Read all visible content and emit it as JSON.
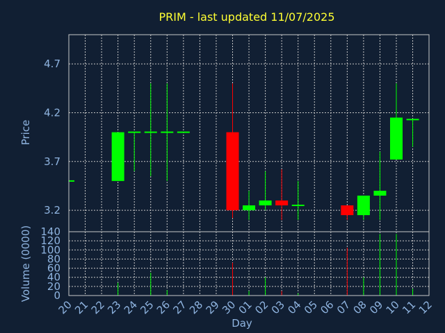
{
  "chart_data": {
    "type": "candlestick",
    "title": "PRIM - last updated 11/07/2025",
    "xlabel": "Day",
    "ylabel": "Price",
    "volume_ylabel": "Volume (0000)",
    "days": [
      "20",
      "21",
      "22",
      "23",
      "24",
      "25",
      "26",
      "27",
      "28",
      "29",
      "30",
      "01",
      "02",
      "03",
      "04",
      "05",
      "06",
      "07",
      "08",
      "09",
      "10",
      "11",
      "12"
    ],
    "price_ticks": [
      "3.2",
      "3.7",
      "4.2",
      "4.7"
    ],
    "price_ylim": [
      2.98,
      5.0
    ],
    "volume_ticks": [
      "0",
      "20",
      "40",
      "60",
      "80",
      "100",
      "120",
      "140"
    ],
    "volume_ylim": [
      0,
      140
    ],
    "grid": true,
    "candles": [
      {
        "day": "20",
        "open": 3.5,
        "high": 3.5,
        "low": 3.5,
        "close": 3.5,
        "volume": 0
      },
      {
        "day": "23",
        "open": 3.5,
        "high": 4.0,
        "low": 3.5,
        "close": 4.0,
        "volume": 28
      },
      {
        "day": "24",
        "open": 4.0,
        "high": 4.0,
        "low": 3.6,
        "close": 4.0,
        "volume": 0
      },
      {
        "day": "25",
        "open": 4.0,
        "high": 4.5,
        "low": 3.55,
        "close": 4.0,
        "volume": 50
      },
      {
        "day": "26",
        "open": 4.0,
        "high": 4.5,
        "low": 3.5,
        "close": 4.0,
        "volume": 12
      },
      {
        "day": "27",
        "open": 4.0,
        "high": 4.0,
        "low": 4.0,
        "close": 4.0,
        "volume": 0
      },
      {
        "day": "30",
        "open": 4.0,
        "high": 4.5,
        "low": 3.12,
        "close": 3.2,
        "volume": 72
      },
      {
        "day": "01",
        "open": 3.2,
        "high": 3.4,
        "low": 3.1,
        "close": 3.25,
        "volume": 10
      },
      {
        "day": "02",
        "open": 3.25,
        "high": 3.6,
        "low": 3.2,
        "close": 3.3,
        "volume": 40
      },
      {
        "day": "03",
        "open": 3.3,
        "high": 3.62,
        "low": 3.1,
        "close": 3.25,
        "volume": 10
      },
      {
        "day": "04",
        "open": 3.25,
        "high": 3.5,
        "low": 3.1,
        "close": 3.25,
        "volume": 5
      },
      {
        "day": "07",
        "open": 3.25,
        "high": 3.25,
        "low": 3.1,
        "close": 3.15,
        "volume": 105
      },
      {
        "day": "08",
        "open": 3.15,
        "high": 3.35,
        "low": 3.1,
        "close": 3.35,
        "volume": 40
      },
      {
        "day": "09",
        "open": 3.35,
        "high": 3.8,
        "low": 3.1,
        "close": 3.4,
        "volume": 135
      },
      {
        "day": "10",
        "open": 3.72,
        "high": 4.5,
        "low": 3.72,
        "close": 4.15,
        "volume": 135
      },
      {
        "day": "11",
        "open": 4.13,
        "high": 4.13,
        "low": 3.85,
        "close": 4.13,
        "volume": 15
      }
    ],
    "colors": {
      "up": "#00ff00",
      "down": "#ff0000",
      "title": "#ffff33",
      "text": "#8fb4e0",
      "background": "#111f33",
      "grid": "#c8c8c8"
    }
  }
}
